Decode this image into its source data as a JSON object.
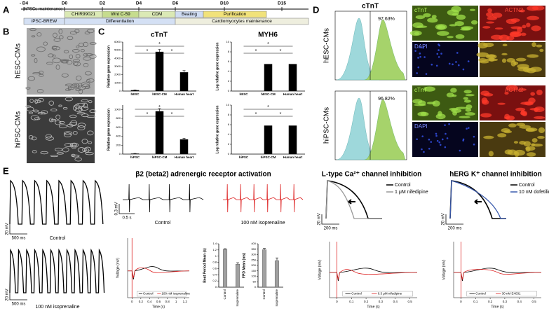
{
  "panel_a": {
    "label": "A",
    "days": [
      "- D4",
      "D0",
      "D2",
      "D4",
      "D6",
      "D10",
      "D15"
    ],
    "top_label": "hPSCs-maintenance",
    "stages": [
      "CHIR99021",
      "Wnt C-59",
      "CDM",
      "Beating",
      "Purification"
    ],
    "phases": [
      "iPSC-BREW",
      "Differentiation",
      "Cardiomyocytes maintenance"
    ]
  },
  "panel_b": {
    "label": "B",
    "rows": [
      "hESC-CMs",
      "hiPSC-CMs"
    ]
  },
  "panel_c": {
    "label": "C",
    "titles": [
      "cTnT",
      "MYH6"
    ],
    "charts": [
      {
        "y_label": "Relative gene expression",
        "categories": [
          "hESC",
          "hESC-CM",
          "Human heart"
        ],
        "values": [
          100,
          4800,
          2300
        ],
        "errors": [
          50,
          300,
          200
        ],
        "ylim": [
          0,
          6000
        ],
        "yticks": [
          0,
          1000,
          2000,
          3000,
          4000,
          5000,
          6000
        ],
        "color": "#000000",
        "significance": [
          "*",
          "*",
          "*"
        ]
      },
      {
        "y_label": "Log relative gene expression",
        "categories": [
          "hESC",
          "hESC-CM",
          "Human heart"
        ],
        "values": [
          0,
          5.5,
          5.5
        ],
        "ylim": [
          0,
          10
        ],
        "yticks": [
          0,
          2,
          4,
          6,
          8,
          10
        ],
        "color": "#000000",
        "significance": [
          "*",
          "*",
          "*"
        ]
      },
      {
        "y_label": "Relative gene expression",
        "categories": [
          "hiPSC",
          "hiPSC-CM",
          "Human heart"
        ],
        "values": [
          10,
          960,
          330
        ],
        "errors": [
          5,
          60,
          25
        ],
        "ylim": [
          0,
          1100
        ],
        "yticks": [
          0,
          200,
          400,
          600,
          800,
          1000
        ],
        "color": "#000000",
        "significance": [
          "*",
          "*",
          "*"
        ]
      },
      {
        "y_label": "Log relative gene expression",
        "categories": [
          "hiPSC",
          "hiPSC-CM",
          "Human heart"
        ],
        "values": [
          0,
          5.8,
          5.8
        ],
        "ylim": [
          0,
          10
        ],
        "yticks": [
          0,
          2,
          4,
          6,
          8,
          10
        ],
        "color": "#000000",
        "significance": [
          "*",
          "*",
          "*"
        ]
      }
    ]
  },
  "panel_d": {
    "label": "D",
    "title": "cTnT",
    "rows": [
      "hESC-CMs",
      "hiPSC-CMs"
    ],
    "percentages": [
      "97.63%",
      "96.82%"
    ],
    "stains": [
      "cTnT",
      "ACTN2",
      "DAPI"
    ]
  },
  "panel_e": {
    "label": "E",
    "beta": {
      "title": "β2 (beta2) adrenergic receptor activation",
      "conditions": [
        "Control",
        "100 nM isoprenaline"
      ],
      "ap_scale": [
        "20 mV",
        "500 ms"
      ],
      "fp_scale": [
        "0.3 mV",
        "0.5 s"
      ],
      "overlay": {
        "y_label": "Voltage (mV)",
        "x_label": "Time (s)",
        "legend": [
          "Control",
          "100 nM isoprenaline"
        ],
        "xlim": [
          -0.1,
          1.3
        ],
        "xticks": [
          0,
          0.2,
          0.4,
          0.6,
          0.8,
          1,
          1.2
        ]
      },
      "bars": [
        {
          "y_label": "Beat Period Mean (s)",
          "categories": [
            "Control",
            "Isoprenaline"
          ],
          "values": [
            1.22,
            0.74
          ],
          "errors": [
            0.02,
            0.05
          ],
          "ylim": [
            0,
            1.4
          ],
          "yticks": [
            0,
            0.2,
            0.4,
            0.6,
            0.8,
            1,
            1.2,
            1.4
          ],
          "color": "#a0a0a0"
        },
        {
          "y_label": "FPD Mean (ms)",
          "categories": [
            "Control",
            "Isoprenaline"
          ],
          "values": [
            345,
            245
          ],
          "errors": [
            12,
            25
          ],
          "ylim": [
            0,
            400
          ],
          "yticks": [
            0,
            50,
            100,
            150,
            200,
            250,
            300,
            350,
            400
          ],
          "color": "#a0a0a0"
        }
      ]
    },
    "ltype": {
      "title": "L-type Ca²⁺ channel inhibition",
      "legend": [
        "Control",
        "1 μM nifedipine"
      ],
      "ap_scale": [
        "20 mV",
        "200 ms"
      ],
      "overlay": {
        "y_label": "Voltage (mV)",
        "x_label": "Time (s)",
        "legend": [
          "Control",
          "0.3 μM nifedipine"
        ],
        "xlim": [
          -0.05,
          0.55
        ],
        "xticks": [
          0,
          0.1,
          0.2,
          0.3,
          0.4,
          0.5
        ]
      }
    },
    "herg": {
      "title": "hERG K⁺ channel inhibition",
      "legend": [
        "Control",
        "10 nM dofetilide"
      ],
      "ap_scale": [
        "20 mV",
        "200 ms"
      ],
      "overlay": {
        "y_label": "Voltage (mV)",
        "x_label": "Time (s)",
        "legend": [
          "Control",
          "30 nM E4031"
        ],
        "xlim": [
          -0.05,
          0.55
        ],
        "xticks": [
          0,
          0.1,
          0.2,
          0.3,
          0.4,
          0.5
        ]
      }
    }
  }
}
